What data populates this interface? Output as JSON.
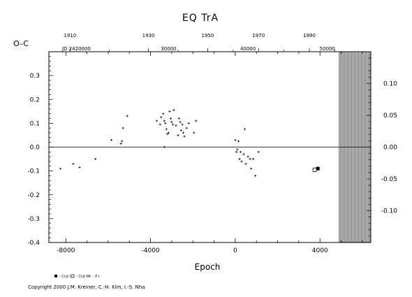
{
  "chart_data": {
    "type": "scatter",
    "title": "EQ TrA",
    "ylabel": "O–C",
    "xlabel": "Epoch",
    "xlim": [
      -8800,
      6400
    ],
    "ylim": [
      -0.4,
      0.4
    ],
    "right_ylim": [
      -0.15,
      0.15
    ],
    "x_ticks": [
      "-8000",
      "-4000",
      "0",
      "4000"
    ],
    "x_tick_values": [
      -8000,
      -4000,
      0,
      4000
    ],
    "y_ticks": [
      "-0.4",
      "-0.3",
      "-0.2",
      "-0.1",
      "0.0",
      "0.1",
      "0.2",
      "0.3"
    ],
    "y_tick_values": [
      -0.4,
      -0.3,
      -0.2,
      -0.1,
      0.0,
      0.1,
      0.2,
      0.3
    ],
    "right_ticks": [
      "-0.10",
      "-0.05",
      "0.00",
      "0.05",
      "0.10"
    ],
    "right_tick_values": [
      -0.1,
      -0.05,
      0.0,
      0.05,
      0.1
    ],
    "top_year_ticks": [
      "1910",
      "1930",
      "1950",
      "1970",
      "1990"
    ],
    "top_year_epochs": [
      -7800,
      -4100,
      -1300,
      1100,
      3500
    ],
    "top_jd_ticks": [
      "JD 2420000",
      "30000",
      "40000",
      "50000"
    ],
    "top_jd_epochs": [
      -7500,
      -3150,
      600,
      4350
    ],
    "hatched_from_x": 4900,
    "grid": false,
    "legend": [
      {
        "marker": "filled-square",
        "label": ": Ccd I"
      },
      {
        "marker": "open-square",
        "label": ": Ccd II"
      },
      {
        "marker": "plus",
        "label": ": P I"
      }
    ],
    "legend_position": "bottom-left",
    "series": [
      {
        "name": "Ccd I",
        "marker": "filled-square",
        "points": [
          [
            3900,
            -0.09
          ]
        ]
      },
      {
        "name": "Ccd II",
        "marker": "open-square",
        "points": [
          [
            3750,
            -0.095
          ]
        ]
      },
      {
        "name": "P I",
        "marker": "plus",
        "points": [
          [
            -8250,
            -0.09
          ],
          [
            -7650,
            -0.07
          ],
          [
            -7350,
            -0.085
          ],
          [
            -6600,
            -0.05
          ],
          [
            -5850,
            0.03
          ],
          [
            -5400,
            0.015
          ],
          [
            -5350,
            0.025
          ],
          [
            -5300,
            0.08
          ],
          [
            -5100,
            0.13
          ],
          [
            -3700,
            0.11
          ],
          [
            -3550,
            0.095
          ],
          [
            -3500,
            0.125
          ],
          [
            -3400,
            0.14
          ],
          [
            -3350,
            0.11
          ],
          [
            -3300,
            0.1
          ],
          [
            -3250,
            0.075
          ],
          [
            -3200,
            0.055
          ],
          [
            -3150,
            0.06
          ],
          [
            -3100,
            0.15
          ],
          [
            -3050,
            0.12
          ],
          [
            -3000,
            0.105
          ],
          [
            -2950,
            0.095
          ],
          [
            -2900,
            0.155
          ],
          [
            -2800,
            0.09
          ],
          [
            -2700,
            0.05
          ],
          [
            -2650,
            0.12
          ],
          [
            -2600,
            0.105
          ],
          [
            -2550,
            0.07
          ],
          [
            -2500,
            0.095
          ],
          [
            -2450,
            0.06
          ],
          [
            -2400,
            0.045
          ],
          [
            -2300,
            0.08
          ],
          [
            -2200,
            0.1
          ],
          [
            -1950,
            0.06
          ],
          [
            -1850,
            0.11
          ],
          [
            -3350,
            0.0
          ],
          [
            0,
            0.03
          ],
          [
            50,
            -0.02
          ],
          [
            100,
            -0.01
          ],
          [
            150,
            0.025
          ],
          [
            200,
            -0.05
          ],
          [
            250,
            -0.02
          ],
          [
            300,
            -0.06
          ],
          [
            400,
            -0.03
          ],
          [
            450,
            0.075
          ],
          [
            500,
            -0.07
          ],
          [
            600,
            -0.04
          ],
          [
            700,
            -0.05
          ],
          [
            750,
            -0.09
          ],
          [
            850,
            -0.05
          ],
          [
            950,
            -0.12
          ],
          [
            1100,
            -0.02
          ]
        ]
      }
    ]
  },
  "copyright": "Copyright 2000 J.M. Kreiner, C.-H. Kim, I.-S. Nha"
}
